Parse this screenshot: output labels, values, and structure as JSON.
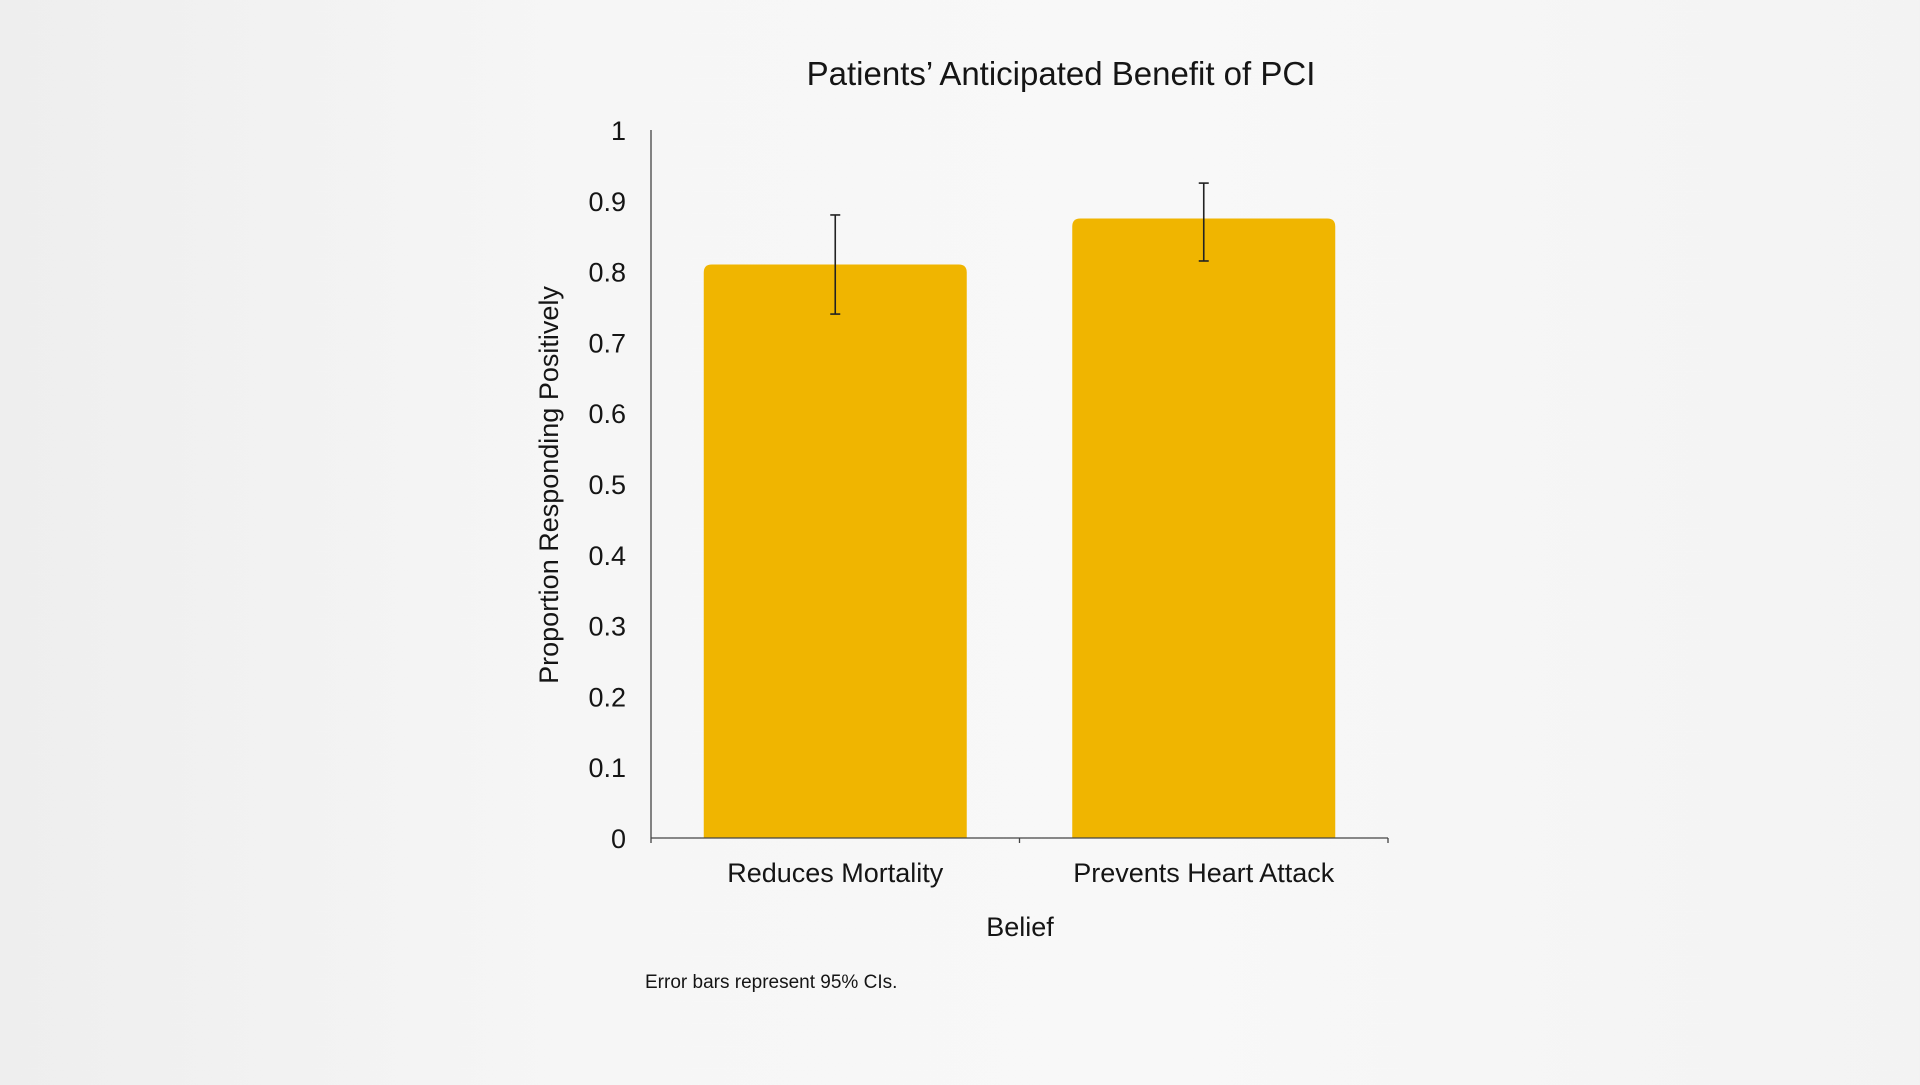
{
  "chart_data": {
    "type": "bar",
    "title": "Patients’ Anticipated Benefit of PCI",
    "xlabel": "Belief",
    "ylabel": "Proportion Responding Positively",
    "categories": [
      "Reduces Mortality",
      "Prevents Heart Attack"
    ],
    "values": [
      0.81,
      0.875
    ],
    "error_low": [
      0.74,
      0.815
    ],
    "error_high": [
      0.88,
      0.925
    ],
    "ylim": [
      0,
      1
    ],
    "yticks": [
      "0",
      "0.1",
      "0.2",
      "0.3",
      "0.4",
      "0.5",
      "0.6",
      "0.7",
      "0.8",
      "0.9",
      "1"
    ],
    "bar_color": "#f0b500",
    "grid": false
  },
  "footnote": "Error bars represent 95% CIs."
}
